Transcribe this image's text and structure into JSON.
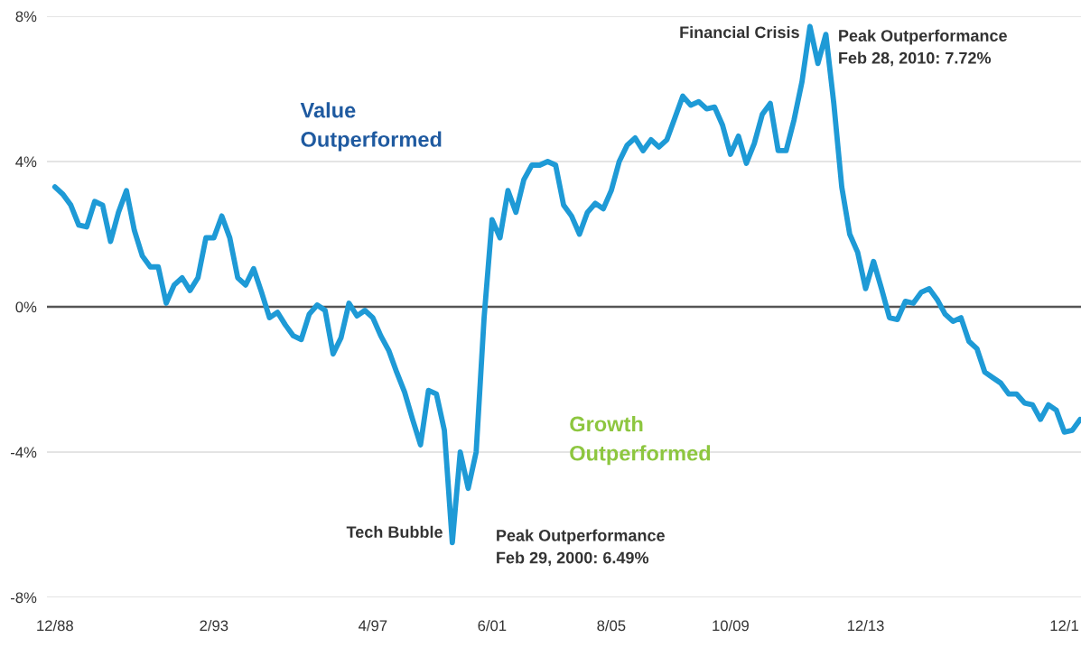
{
  "chart_data": {
    "type": "line",
    "categories": [
      "12/88",
      null,
      null,
      null,
      null,
      null,
      null,
      null,
      null,
      null,
      null,
      null,
      null,
      null,
      null,
      null,
      null,
      null,
      null,
      null,
      "2/93",
      null,
      null,
      null,
      null,
      null,
      null,
      null,
      null,
      null,
      null,
      null,
      null,
      null,
      null,
      null,
      null,
      null,
      null,
      null,
      "4/97",
      null,
      null,
      null,
      null,
      null,
      null,
      null,
      null,
      null,
      null,
      null,
      null,
      null,
      null,
      "6/01",
      null,
      null,
      null,
      null,
      null,
      null,
      null,
      null,
      null,
      null,
      null,
      null,
      null,
      null,
      "8/05",
      null,
      null,
      null,
      null,
      null,
      null,
      null,
      null,
      null,
      null,
      null,
      null,
      null,
      null,
      "10/09",
      null,
      null,
      null,
      null,
      null,
      null,
      null,
      null,
      null,
      null,
      null,
      null,
      null,
      null,
      null,
      null,
      "12/13",
      null,
      null,
      null,
      null,
      null,
      null,
      null,
      null,
      null,
      null,
      null,
      null,
      null,
      null,
      null,
      null,
      null,
      null,
      null,
      null,
      null,
      null,
      null,
      null,
      "12/1",
      null,
      null
    ],
    "series": [
      {
        "color": "#1e9ad6",
        "values": [
          3.3,
          3.1,
          2.8,
          2.25,
          2.2,
          2.9,
          2.8,
          1.8,
          2.6,
          3.2,
          2.1,
          1.4,
          1.1,
          1.1,
          0.1,
          0.6,
          0.8,
          0.45,
          0.8,
          1.9,
          1.9,
          2.5,
          1.9,
          0.8,
          0.6,
          1.05,
          0.4,
          -0.3,
          -0.15,
          -0.5,
          -0.8,
          -0.9,
          -0.2,
          0.05,
          -0.1,
          -1.3,
          -0.85,
          0.1,
          -0.25,
          -0.1,
          -0.3,
          -0.8,
          -1.2,
          -1.8,
          -2.35,
          -3.1,
          -3.8,
          -2.3,
          -2.4,
          -3.4,
          -6.49,
          -4.0,
          -5.0,
          -4.0,
          -0.3,
          2.4,
          1.9,
          3.2,
          2.6,
          3.5,
          3.9,
          3.9,
          4.0,
          3.9,
          2.8,
          2.5,
          2.0,
          2.6,
          2.85,
          2.7,
          3.2,
          4.0,
          4.45,
          4.65,
          4.3,
          4.6,
          4.4,
          4.6,
          5.2,
          5.8,
          5.55,
          5.65,
          5.45,
          5.5,
          5.0,
          4.2,
          4.7,
          3.95,
          4.5,
          5.3,
          5.6,
          4.3,
          4.3,
          5.15,
          6.2,
          7.72,
          6.7,
          7.5,
          5.6,
          3.3,
          2.0,
          1.5,
          0.5,
          1.25,
          0.5,
          -0.3,
          -0.35,
          0.15,
          0.1,
          0.4,
          0.5,
          0.2,
          -0.2,
          -0.4,
          -0.3,
          -0.95,
          -1.15,
          -1.8,
          -1.95,
          -2.1,
          -2.4,
          -2.4,
          -2.65,
          -2.7,
          -3.1,
          -2.7,
          -2.85,
          -3.45,
          -3.4,
          -3.1
        ]
      }
    ],
    "ylim": [
      -8,
      8
    ],
    "yticks": [
      {
        "value": -8,
        "label": "-8%"
      },
      {
        "value": -4,
        "label": "-4%"
      },
      {
        "value": 0,
        "label": "0%"
      },
      {
        "value": 4,
        "label": "4%"
      },
      {
        "value": 8,
        "label": "8%"
      }
    ],
    "grid": "y",
    "ref_lines": [
      {
        "axis": "y",
        "value": 0,
        "color": "#555555"
      }
    ],
    "annotations": [
      "Value\nOutperformed",
      "Growth\nOutperformed",
      "Tech Bubble",
      "Peak Outperformance\nFeb 29, 2000: 6.49%",
      "Financial Crisis",
      "Peak Outperformance\nFeb 28, 2010: 7.72%"
    ]
  }
}
